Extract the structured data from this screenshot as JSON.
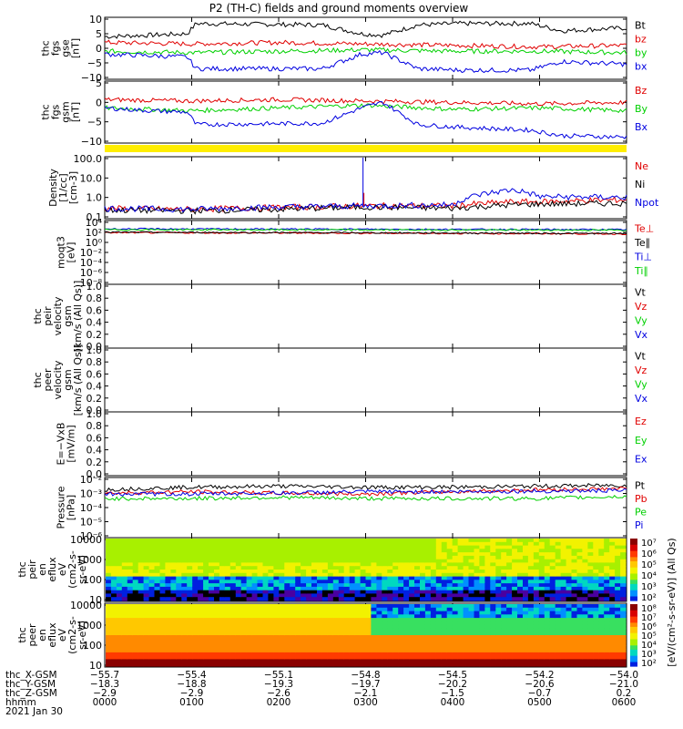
{
  "title": "P2 (TH-C) fields and ground moments overview",
  "colors": {
    "black": "#000000",
    "red": "#e00000",
    "green": "#00d000",
    "blue": "#0000e0",
    "yellow": "#ffee00"
  },
  "chart_data": [
    {
      "id": "fgs_gse",
      "type": "line",
      "ylabel_lines": [
        "thc",
        "fgs",
        "gse",
        "[nT]"
      ],
      "yticks": [
        "10",
        "5",
        "0",
        "−5",
        "−10"
      ],
      "yrange": [
        -10,
        10
      ],
      "legend": [
        {
          "text": "Bt",
          "color": "#000000"
        },
        {
          "text": "bz",
          "color": "#e00000"
        },
        {
          "text": "by",
          "color": "#00d000"
        },
        {
          "text": "bx",
          "color": "#0000e0"
        }
      ],
      "series_levels": [
        {
          "name": "Bt",
          "hours": [
            0,
            0.5,
            0.95,
            1.05,
            2.5,
            2.95,
            3.2,
            3.6,
            4.1,
            4.9,
            5.25,
            6
          ],
          "values": [
            4,
            4.5,
            5,
            8.5,
            8,
            5,
            4.5,
            8,
            8.5,
            8.5,
            6,
            7
          ]
        },
        {
          "name": "bz",
          "hours": [
            0,
            1,
            2,
            3,
            4,
            5,
            6
          ],
          "values": [
            2,
            1.5,
            2,
            1.5,
            1,
            0.5,
            1
          ]
        },
        {
          "name": "by",
          "hours": [
            0,
            1,
            2,
            3,
            4,
            5,
            6
          ],
          "values": [
            -1,
            -1.5,
            -1,
            -0.5,
            -1,
            -1,
            -1.5
          ]
        },
        {
          "name": "bx",
          "hours": [
            0,
            0.5,
            0.95,
            1.05,
            2.5,
            2.95,
            3.2,
            3.6,
            4.1,
            4.9,
            5.25,
            6
          ],
          "values": [
            -2,
            -2.5,
            -3,
            -7,
            -7,
            -2,
            -1.5,
            -7,
            -7.5,
            -7.5,
            -4.5,
            -5.5
          ]
        }
      ]
    },
    {
      "id": "fgs_gsm",
      "type": "line",
      "ylabel_lines": [
        "thc",
        "fgs",
        "gsm",
        "[nT]"
      ],
      "yticks": [
        "5",
        "0",
        "−5",
        "−10"
      ],
      "yrange": [
        -13,
        8
      ],
      "legend": [
        {
          "text": "Bz",
          "color": "#e00000"
        },
        {
          "text": "By",
          "color": "#00d000"
        },
        {
          "text": "Bx",
          "color": "#0000e0"
        }
      ],
      "series_levels": [
        {
          "name": "Bz",
          "hours": [
            0,
            1,
            2,
            3,
            4,
            5,
            6
          ],
          "values": [
            2,
            1.5,
            2,
            1.5,
            1,
            0.5,
            1
          ]
        },
        {
          "name": "By",
          "hours": [
            0,
            1,
            2,
            3,
            4,
            5,
            6
          ],
          "values": [
            -1,
            -2,
            -1,
            0,
            -1.5,
            -1,
            -2
          ]
        },
        {
          "name": "Bx",
          "hours": [
            0,
            0.5,
            0.95,
            1.05,
            2.5,
            2.95,
            3.2,
            3.6,
            4.1,
            4.9,
            5.25,
            6
          ],
          "values": [
            -1,
            -2,
            -2.5,
            -7,
            -6.5,
            -1,
            1,
            -7,
            -8,
            -9,
            -11,
            -11.5
          ]
        }
      ]
    },
    {
      "id": "density",
      "type": "line",
      "yscale": "log",
      "ylabel_lines": [
        "Density",
        "[1/cc]",
        "[cm-3]"
      ],
      "yticks": [
        "100.0",
        "10.0",
        "1.0",
        "0.1"
      ],
      "yrange": [
        0.08,
        200
      ],
      "legend": [
        {
          "text": "Ne",
          "color": "#e00000"
        },
        {
          "text": "Ni",
          "color": "#000000"
        },
        {
          "text": "Npot",
          "color": "#0000e0"
        }
      ],
      "series_levels": [
        {
          "name": "Ne",
          "hours": [
            0,
            1,
            2,
            3,
            4,
            4.7,
            5,
            6
          ],
          "values": [
            0.25,
            0.22,
            0.28,
            0.35,
            0.35,
            0.6,
            0.6,
            0.8
          ]
        },
        {
          "name": "Ni",
          "hours": [
            0,
            1,
            2,
            3,
            4,
            4.7,
            5,
            6
          ],
          "values": [
            0.2,
            0.18,
            0.22,
            0.3,
            0.25,
            0.4,
            0.45,
            0.5
          ]
        },
        {
          "name": "Npot",
          "hours": [
            0,
            1,
            2,
            3,
            4,
            4.7,
            5,
            6
          ],
          "values": [
            0.25,
            0.22,
            0.3,
            0.35,
            0.4,
            3,
            1.2,
            1.1
          ]
        }
      ]
    },
    {
      "id": "temperature",
      "type": "line",
      "yscale": "log",
      "ylabel_lines": [
        "moqt3",
        "[eV]"
      ],
      "yticks": [
        "10⁴",
        "10²",
        "10⁰",
        "10⁻²",
        "10⁻⁴",
        "10⁻⁶",
        "10⁻⁸"
      ],
      "yrange": [
        1e-09,
        100000.0
      ],
      "legend": [
        {
          "text": "Te⊥",
          "color": "#e00000"
        },
        {
          "text": "Te∥",
          "color": "#000000"
        },
        {
          "text": "Ti⊥",
          "color": "#0000e0"
        },
        {
          "text": "Ti∥",
          "color": "#00d000"
        }
      ],
      "series_levels": [
        {
          "name": "Te⊥",
          "hours": [
            0,
            6
          ],
          "values": [
            400,
            200
          ]
        },
        {
          "name": "Te∥",
          "hours": [
            0,
            6
          ],
          "values": [
            500,
            250
          ]
        },
        {
          "name": "Ti⊥",
          "hours": [
            0,
            6
          ],
          "values": [
            3000,
            2000
          ]
        },
        {
          "name": "Ti∥",
          "hours": [
            0,
            6
          ],
          "values": [
            2000,
            1500
          ]
        }
      ]
    },
    {
      "id": "peir_velocity",
      "type": "line",
      "ylabel_lines": [
        "thc",
        "peir",
        "velocity",
        "gsm",
        "[km/s (All Qs)]"
      ],
      "yticks": [
        "1.0",
        "0.8",
        "0.6",
        "0.4",
        "0.2",
        "0.0"
      ],
      "yrange": [
        0,
        1
      ],
      "legend": [
        {
          "text": "Vt",
          "color": "#000000"
        },
        {
          "text": "Vz",
          "color": "#e00000"
        },
        {
          "text": "Vy",
          "color": "#00d000"
        },
        {
          "text": "Vx",
          "color": "#0000e0"
        }
      ],
      "series_levels": []
    },
    {
      "id": "peer_velocity",
      "type": "line",
      "ylabel_lines": [
        "thc",
        "peer",
        "velocity",
        "gsm",
        "[km/s (All Qs)]"
      ],
      "yticks": [
        "1.0",
        "0.8",
        "0.6",
        "0.4",
        "0.2",
        "0.0"
      ],
      "yrange": [
        0,
        1
      ],
      "legend": [
        {
          "text": "Vt",
          "color": "#000000"
        },
        {
          "text": "Vz",
          "color": "#e00000"
        },
        {
          "text": "Vy",
          "color": "#00d000"
        },
        {
          "text": "Vx",
          "color": "#0000e0"
        }
      ],
      "series_levels": []
    },
    {
      "id": "efield",
      "type": "line",
      "ylabel_lines": [
        "E=−VxB",
        "[mV/m]"
      ],
      "yticks": [
        "1.0",
        "0.8",
        "0.6",
        "0.4",
        "0.2",
        "0.0"
      ],
      "yrange": [
        0,
        1
      ],
      "legend": [
        {
          "text": "Ez",
          "color": "#e00000"
        },
        {
          "text": "Ey",
          "color": "#00d000"
        },
        {
          "text": "Ex",
          "color": "#0000e0"
        }
      ],
      "series_levels": []
    },
    {
      "id": "pressure",
      "type": "line",
      "yscale": "log",
      "ylabel_lines": [
        "Pressure",
        "[nPa]"
      ],
      "yticks": [
        "10⁻²",
        "10⁻³",
        "10⁻⁴",
        "10⁻⁵",
        "10⁻⁶"
      ],
      "yrange": [
        1e-06,
        0.1
      ],
      "legend": [
        {
          "text": "Pt",
          "color": "#000000"
        },
        {
          "text": "Pb",
          "color": "#e00000"
        },
        {
          "text": "Pe",
          "color": "#00d000"
        },
        {
          "text": "Pi",
          "color": "#0000e0"
        }
      ],
      "series_levels": [
        {
          "name": "Pt",
          "hours": [
            0,
            1,
            2,
            3,
            4,
            5,
            6
          ],
          "values": [
            0.012,
            0.02,
            0.025,
            0.02,
            0.02,
            0.025,
            0.03
          ]
        },
        {
          "name": "Pb",
          "hours": [
            0,
            1,
            2,
            3,
            4,
            5,
            6
          ],
          "values": [
            0.006,
            0.008,
            0.006,
            0.005,
            0.008,
            0.012,
            0.015
          ]
        },
        {
          "name": "Pe",
          "hours": [
            0,
            1,
            2,
            3,
            4,
            5,
            6
          ],
          "values": [
            0.002,
            0.002,
            0.0025,
            0.002,
            0.002,
            0.002,
            0.003
          ]
        },
        {
          "name": "Pi",
          "hours": [
            0,
            1,
            2,
            3,
            4,
            5,
            6
          ],
          "values": [
            0.005,
            0.005,
            0.006,
            0.008,
            0.008,
            0.009,
            0.01
          ]
        }
      ]
    },
    {
      "id": "peir_eflux",
      "type": "heatmap",
      "ylabel_lines": [
        "thc",
        "peir",
        "en",
        "eflux",
        "eV",
        "(cm2-s-",
        "sr-eV)"
      ],
      "yticks": [
        "10000",
        "1000",
        "100",
        "10"
      ],
      "colorbar_ticks": [
        "10⁷",
        "10⁶",
        "10⁵",
        "10⁴",
        "10³",
        "10²"
      ],
      "colorbar_label": "[eV/(cm²-s-sr-eV)] (All Qs)"
    },
    {
      "id": "peer_eflux",
      "type": "heatmap",
      "ylabel_lines": [
        "thc",
        "peer",
        "en",
        "eflux",
        "eV",
        "(cm2-s-",
        "sr-eV)"
      ],
      "yticks": [
        "10000",
        "1000",
        "100",
        "10"
      ],
      "colorbar_ticks": [
        "10⁸",
        "10⁷",
        "10⁶",
        "10⁵",
        "10⁴",
        "10³",
        "10²"
      ],
      "colorbar_label": "[eV/(cm²-s-sr-eV)]"
    }
  ],
  "x_axis": {
    "row_labels": [
      "thc_X-GSM",
      "thc_Y-GSM",
      "thc_Z-GSM",
      "hhmm",
      "2021 Jan 30"
    ],
    "columns": [
      [
        "−55.7",
        "−18.3",
        "−2.9",
        "0000"
      ],
      [
        "−55.4",
        "−18.8",
        "−2.9",
        "0100"
      ],
      [
        "−55.1",
        "−19.3",
        "−2.6",
        "0200"
      ],
      [
        "−54.8",
        "−19.7",
        "−2.1",
        "0300"
      ],
      [
        "−54.5",
        "−20.2",
        "−1.5",
        "0400"
      ],
      [
        "−54.2",
        "−20.6",
        "−0.7",
        "0500"
      ],
      [
        "−54.0",
        "−21.0",
        "0.2",
        "0600"
      ]
    ]
  }
}
